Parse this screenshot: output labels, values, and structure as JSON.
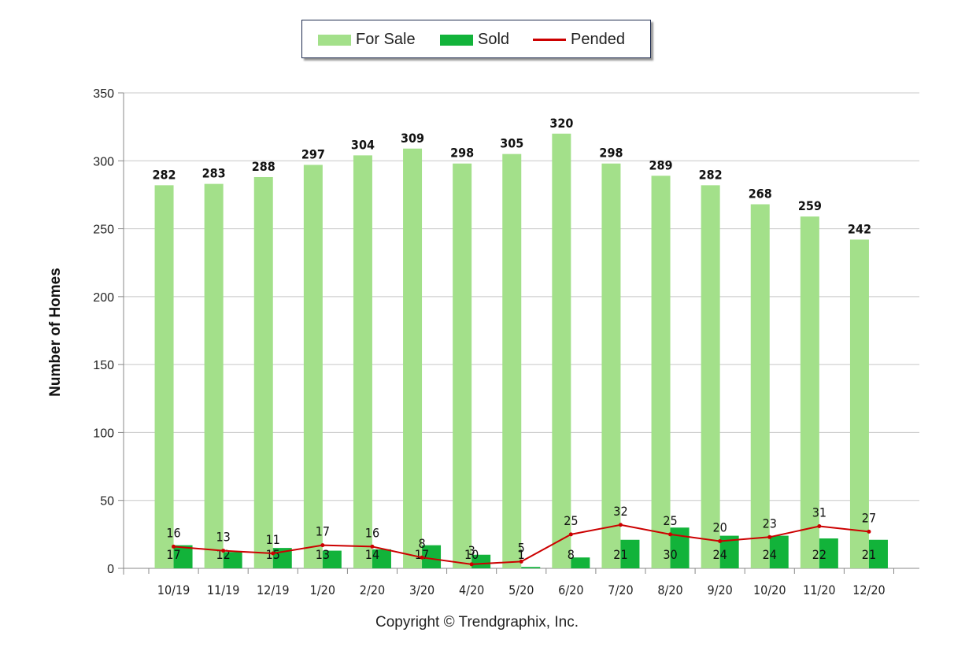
{
  "legend": {
    "for_sale": "For Sale",
    "sold": "Sold",
    "pended": "Pended"
  },
  "copyright": "Copyright © Trendgraphix, Inc.",
  "colors": {
    "for_sale": "#a3e08a",
    "sold": "#12b33a",
    "pended": "#cc0000",
    "grid": "#c8c8c8",
    "text": "#222222"
  },
  "chart_data": {
    "type": "bar",
    "title": "",
    "xlabel": "",
    "ylabel": "Number of Homes",
    "ylim": [
      0,
      350
    ],
    "yticks": [
      0,
      50,
      100,
      150,
      200,
      250,
      300,
      350
    ],
    "grid": true,
    "legend_position": "top-center",
    "categories": [
      "10/19",
      "11/19",
      "12/19",
      "1/20",
      "2/20",
      "3/20",
      "4/20",
      "5/20",
      "6/20",
      "7/20",
      "8/20",
      "9/20",
      "10/20",
      "11/20",
      "12/20"
    ],
    "series": [
      {
        "name": "For Sale",
        "type": "bar",
        "values": [
          282,
          283,
          288,
          297,
          304,
          309,
          298,
          305,
          320,
          298,
          289,
          282,
          268,
          259,
          242
        ]
      },
      {
        "name": "Sold",
        "type": "bar",
        "values": [
          17,
          12,
          15,
          13,
          14,
          17,
          10,
          1,
          8,
          21,
          30,
          24,
          24,
          22,
          21
        ]
      },
      {
        "name": "Pended",
        "type": "line",
        "values": [
          16,
          13,
          11,
          17,
          16,
          8,
          3,
          5,
          25,
          32,
          25,
          20,
          23,
          31,
          27
        ]
      }
    ]
  }
}
